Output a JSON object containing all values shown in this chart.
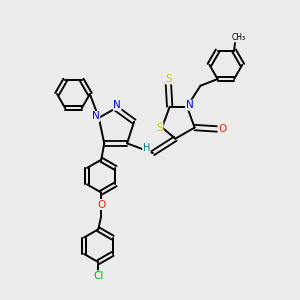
{
  "background_color": "#ebebeb",
  "bond_color": "#000000",
  "atom_colors": {
    "N": "#0000ff",
    "O": "#ff2200",
    "S": "#cccc00",
    "Cl": "#00bb00",
    "H": "#008888",
    "C": "#000000"
  },
  "figsize": [
    3.0,
    3.0
  ],
  "dpi": 100
}
